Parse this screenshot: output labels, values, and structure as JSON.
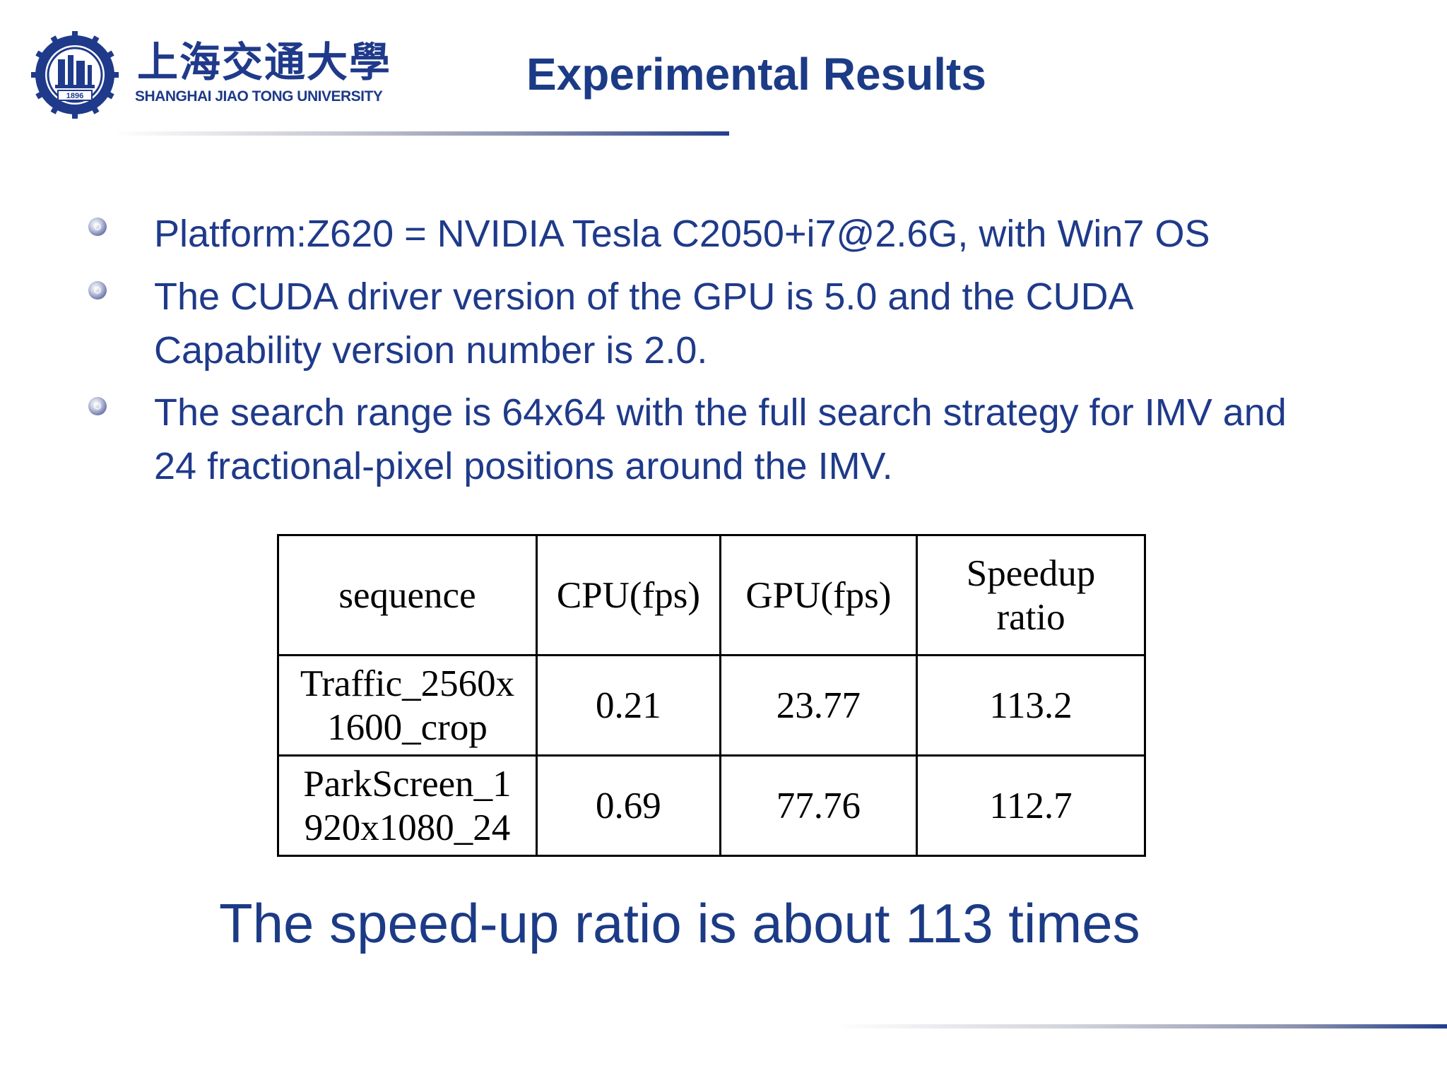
{
  "header": {
    "logo_chinese": "上海交通大學",
    "logo_english": "SHANGHAI JIAO TONG UNIVERSITY",
    "emblem_year": "1896",
    "title": "Experimental Results"
  },
  "bullets": [
    {
      "line1": "Platform:Z620 = NVIDIA Tesla C2050+i7@2.6G, with Win7 OS"
    },
    {
      "line1": "The CUDA driver version of the GPU is 5.0 and the CUDA",
      "line2": "Capability version number is 2.0."
    },
    {
      "line1": "The search range is 64x64 with the full search strategy for IMV and",
      "line2": "24 fractional-pixel positions around the IMV."
    }
  ],
  "table": {
    "headers": {
      "sequence": "sequence",
      "cpu": "CPU(fps)",
      "gpu": "GPU(fps)",
      "speedup_line1": "Speedup",
      "speedup_line2": "ratio"
    },
    "rows": [
      {
        "sequence_line1": "Traffic_2560x",
        "sequence_line2": "1600_crop",
        "cpu": "0.21",
        "gpu": "23.77",
        "speedup": "113.2"
      },
      {
        "sequence_line1": "ParkScreen_1",
        "sequence_line2": "920x1080_24",
        "cpu": "0.69",
        "gpu": "77.76",
        "speedup": "112.7"
      }
    ]
  },
  "conclusion": "The speed-up ratio is about 113 times",
  "colors": {
    "title": "#1c3b86",
    "text": "#1f3a8a"
  },
  "icons": [
    "sjtu-emblem-icon",
    "bullet-icon"
  ]
}
